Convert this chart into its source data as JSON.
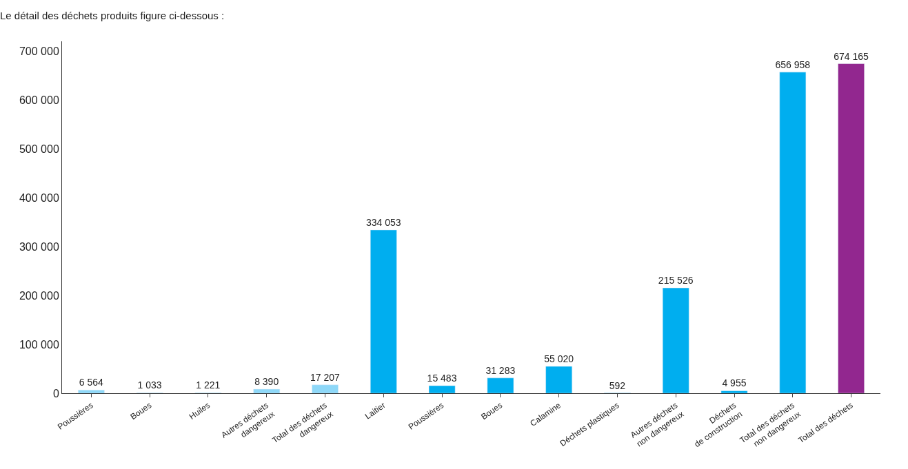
{
  "chart_data": {
    "type": "bar",
    "title": "Le détail des déchets produits figure ci-dessous :",
    "categories": [
      "Poussières",
      "Boues",
      "Huiles",
      "Autres déchets\ndangereux",
      "Total des déchets\ndangereux",
      "Laitier",
      "Poussières",
      "Boues",
      "Calamine",
      "Déchets plastiques",
      "Autres déchets\nnon dangereux",
      "Déchets\nde construction",
      "Total des déchets\nnon dangereux",
      "Total des déchets"
    ],
    "values": [
      6564,
      1033,
      1221,
      8390,
      17207,
      334053,
      15483,
      31283,
      55020,
      592,
      215526,
      4955,
      656958,
      674165
    ],
    "value_labels": [
      "6 564",
      "1 033",
      "1 221",
      "8 390",
      "17 207",
      "334 053",
      "15 483",
      "31 283",
      "55 020",
      "592",
      "215 526",
      "4 955",
      "656 958",
      "674 165"
    ],
    "colors": [
      "#8ed8f8",
      "#8ed8f8",
      "#8ed8f8",
      "#8ed8f8",
      "#8ed8f8",
      "#00aeef",
      "#00aeef",
      "#00aeef",
      "#00aeef",
      "#00aeef",
      "#00aeef",
      "#00aeef",
      "#00aeef",
      "#92278f"
    ],
    "ylim": [
      0,
      720000
    ],
    "yticks": [
      {
        "value": 0,
        "label": "0"
      },
      {
        "value": 100000,
        "label": "100 000"
      },
      {
        "value": 200000,
        "label": "200 000"
      },
      {
        "value": 300000,
        "label": "300 000"
      },
      {
        "value": 400000,
        "label": "400 000"
      },
      {
        "value": 500000,
        "label": "500 000"
      },
      {
        "value": 600000,
        "label": "600 000"
      },
      {
        "value": 700000,
        "label": "700 000"
      }
    ],
    "legend": false
  }
}
